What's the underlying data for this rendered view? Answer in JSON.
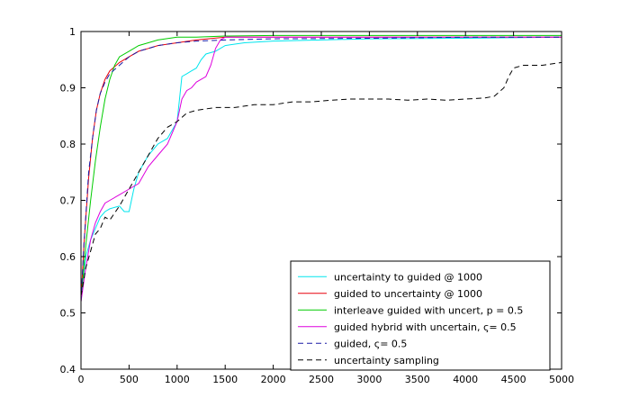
{
  "chart_data": {
    "type": "line",
    "title": "",
    "xlabel": "",
    "ylabel": "",
    "xlim": [
      0,
      5000
    ],
    "ylim": [
      0.4,
      1.0
    ],
    "x_ticks": [
      0,
      500,
      1000,
      1500,
      2000,
      2500,
      3000,
      3500,
      4000,
      4500,
      5000
    ],
    "y_ticks": [
      0.4,
      0.5,
      0.6,
      0.7,
      0.8,
      0.9,
      1.0
    ],
    "x_tick_labels": [
      "0",
      "500",
      "1000",
      "1500",
      "2000",
      "2500",
      "3000",
      "3500",
      "4000",
      "4500",
      "5000"
    ],
    "y_tick_labels": [
      "0.4",
      "0.5",
      "0.6",
      "0.7",
      "0.8",
      "0.9",
      "1"
    ],
    "grid": false,
    "legend_position": "bottom-right",
    "series": [
      {
        "name": "uncertainty to guided @ 1000",
        "color": "#00e5ee",
        "dash": "solid",
        "points": [
          [
            0,
            0.53
          ],
          [
            50,
            0.6
          ],
          [
            100,
            0.63
          ],
          [
            150,
            0.65
          ],
          [
            200,
            0.67
          ],
          [
            250,
            0.68
          ],
          [
            300,
            0.685
          ],
          [
            400,
            0.69
          ],
          [
            450,
            0.68
          ],
          [
            500,
            0.68
          ],
          [
            550,
            0.72
          ],
          [
            600,
            0.75
          ],
          [
            700,
            0.78
          ],
          [
            800,
            0.8
          ],
          [
            900,
            0.81
          ],
          [
            1000,
            0.84
          ],
          [
            1050,
            0.92
          ],
          [
            1100,
            0.925
          ],
          [
            1150,
            0.93
          ],
          [
            1200,
            0.935
          ],
          [
            1250,
            0.95
          ],
          [
            1300,
            0.96
          ],
          [
            1400,
            0.965
          ],
          [
            1500,
            0.975
          ],
          [
            1700,
            0.98
          ],
          [
            2000,
            0.983
          ],
          [
            2500,
            0.985
          ],
          [
            3000,
            0.987
          ],
          [
            4000,
            0.988
          ],
          [
            5000,
            0.99
          ]
        ]
      },
      {
        "name": "guided to uncertainty @ 1000",
        "color": "#e8000b",
        "dash": "solid",
        "points": [
          [
            0,
            0.52
          ],
          [
            30,
            0.62
          ],
          [
            80,
            0.74
          ],
          [
            120,
            0.81
          ],
          [
            160,
            0.86
          ],
          [
            200,
            0.89
          ],
          [
            250,
            0.915
          ],
          [
            300,
            0.93
          ],
          [
            400,
            0.945
          ],
          [
            500,
            0.955
          ],
          [
            600,
            0.965
          ],
          [
            700,
            0.97
          ],
          [
            800,
            0.975
          ],
          [
            1000,
            0.98
          ],
          [
            1200,
            0.985
          ],
          [
            1500,
            0.99
          ],
          [
            2000,
            0.99
          ],
          [
            3000,
            0.99
          ],
          [
            4000,
            0.99
          ],
          [
            5000,
            0.99
          ]
        ]
      },
      {
        "name": "interleave guided with uncert, p = 0.5",
        "color": "#00cc00",
        "dash": "solid",
        "points": [
          [
            0,
            0.52
          ],
          [
            50,
            0.62
          ],
          [
            100,
            0.7
          ],
          [
            150,
            0.77
          ],
          [
            200,
            0.83
          ],
          [
            250,
            0.88
          ],
          [
            300,
            0.915
          ],
          [
            350,
            0.94
          ],
          [
            400,
            0.955
          ],
          [
            500,
            0.965
          ],
          [
            600,
            0.975
          ],
          [
            700,
            0.98
          ],
          [
            800,
            0.985
          ],
          [
            1000,
            0.99
          ],
          [
            1200,
            0.99
          ],
          [
            1500,
            0.992
          ],
          [
            2000,
            0.993
          ],
          [
            3000,
            0.993
          ],
          [
            4000,
            0.993
          ],
          [
            5000,
            0.993
          ]
        ]
      },
      {
        "name": "guided hybrid with uncertain, ς= 0.5",
        "color": "#dd00dd",
        "dash": "solid",
        "points": [
          [
            0,
            0.52
          ],
          [
            50,
            0.58
          ],
          [
            100,
            0.63
          ],
          [
            150,
            0.66
          ],
          [
            200,
            0.68
          ],
          [
            250,
            0.695
          ],
          [
            300,
            0.7
          ],
          [
            400,
            0.71
          ],
          [
            500,
            0.72
          ],
          [
            600,
            0.73
          ],
          [
            700,
            0.76
          ],
          [
            800,
            0.78
          ],
          [
            900,
            0.8
          ],
          [
            1000,
            0.84
          ],
          [
            1050,
            0.88
          ],
          [
            1100,
            0.895
          ],
          [
            1150,
            0.9
          ],
          [
            1200,
            0.91
          ],
          [
            1300,
            0.92
          ],
          [
            1350,
            0.94
          ],
          [
            1400,
            0.97
          ],
          [
            1450,
            0.985
          ],
          [
            1500,
            0.99
          ],
          [
            2000,
            0.99
          ],
          [
            3000,
            0.99
          ],
          [
            4000,
            0.99
          ],
          [
            5000,
            0.99
          ]
        ]
      },
      {
        "name": "guided, ς= 0.5",
        "color": "#1a1aa6",
        "dash": "dashed",
        "points": [
          [
            0,
            0.52
          ],
          [
            30,
            0.62
          ],
          [
            80,
            0.75
          ],
          [
            120,
            0.81
          ],
          [
            160,
            0.86
          ],
          [
            200,
            0.89
          ],
          [
            250,
            0.91
          ],
          [
            300,
            0.925
          ],
          [
            400,
            0.94
          ],
          [
            500,
            0.955
          ],
          [
            600,
            0.965
          ],
          [
            700,
            0.97
          ],
          [
            800,
            0.975
          ],
          [
            1000,
            0.98
          ],
          [
            1200,
            0.983
          ],
          [
            1500,
            0.985
          ],
          [
            2000,
            0.987
          ],
          [
            3000,
            0.988
          ],
          [
            4000,
            0.99
          ],
          [
            5000,
            0.99
          ]
        ]
      },
      {
        "name": "uncertainty sampling",
        "color": "#000000",
        "dash": "dashed",
        "points": [
          [
            0,
            0.53
          ],
          [
            50,
            0.58
          ],
          [
            100,
            0.61
          ],
          [
            150,
            0.64
          ],
          [
            200,
            0.65
          ],
          [
            250,
            0.67
          ],
          [
            300,
            0.665
          ],
          [
            400,
            0.69
          ],
          [
            500,
            0.72
          ],
          [
            600,
            0.75
          ],
          [
            700,
            0.78
          ],
          [
            800,
            0.81
          ],
          [
            900,
            0.83
          ],
          [
            1000,
            0.84
          ],
          [
            1100,
            0.855
          ],
          [
            1200,
            0.86
          ],
          [
            1400,
            0.865
          ],
          [
            1600,
            0.865
          ],
          [
            1800,
            0.87
          ],
          [
            2000,
            0.87
          ],
          [
            2200,
            0.875
          ],
          [
            2400,
            0.875
          ],
          [
            2600,
            0.878
          ],
          [
            2800,
            0.88
          ],
          [
            3000,
            0.88
          ],
          [
            3200,
            0.88
          ],
          [
            3400,
            0.878
          ],
          [
            3600,
            0.88
          ],
          [
            3800,
            0.878
          ],
          [
            4000,
            0.88
          ],
          [
            4200,
            0.882
          ],
          [
            4300,
            0.885
          ],
          [
            4400,
            0.9
          ],
          [
            4450,
            0.92
          ],
          [
            4500,
            0.935
          ],
          [
            4600,
            0.94
          ],
          [
            4800,
            0.94
          ],
          [
            5000,
            0.945
          ]
        ]
      }
    ]
  }
}
